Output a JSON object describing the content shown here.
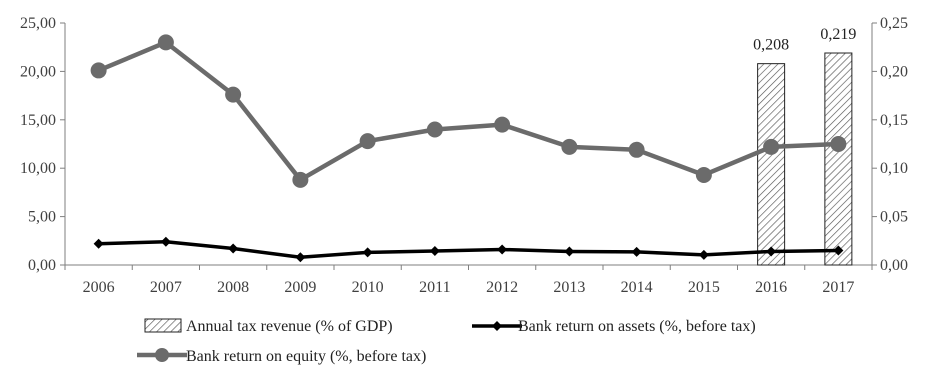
{
  "chart_data": {
    "type": "bar+line",
    "categories": [
      "2006",
      "2007",
      "2008",
      "2009",
      "2010",
      "2011",
      "2012",
      "2013",
      "2014",
      "2015",
      "2016",
      "2017"
    ],
    "left_axis": {
      "min": 0,
      "max": 25,
      "step": 5,
      "tick_labels": [
        "0,00",
        "5,00",
        "10,00",
        "15,00",
        "20,00",
        "25,00"
      ]
    },
    "right_axis": {
      "min": 0,
      "max": 0.25,
      "step": 0.05,
      "tick_labels": [
        "0,00",
        "0,05",
        "0,10",
        "0,15",
        "0,20",
        "0,25"
      ]
    },
    "series": [
      {
        "name": "Annual tax revenue (% of GDP)",
        "kind": "bar",
        "axis": "right",
        "values": [
          null,
          null,
          null,
          null,
          null,
          null,
          null,
          null,
          null,
          null,
          0.208,
          0.219
        ],
        "data_labels": [
          null,
          null,
          null,
          null,
          null,
          null,
          null,
          null,
          null,
          null,
          "0,208",
          "0,219"
        ]
      },
      {
        "name": "Bank return on assets (%, before tax)",
        "kind": "line",
        "axis": "left",
        "color": "#000000",
        "marker": "diamond",
        "values": [
          2.2,
          2.4,
          1.7,
          0.8,
          1.3,
          1.45,
          1.6,
          1.4,
          1.35,
          1.05,
          1.4,
          1.5
        ]
      },
      {
        "name": "Bank return on equity (%, before tax)",
        "kind": "line",
        "axis": "left",
        "color": "#6b6b6b",
        "marker": "circle",
        "values": [
          20.1,
          23.0,
          17.6,
          8.8,
          12.8,
          14.0,
          14.5,
          12.2,
          11.9,
          9.3,
          12.2,
          12.5
        ]
      }
    ],
    "legend_position": "bottom",
    "grid": false
  }
}
